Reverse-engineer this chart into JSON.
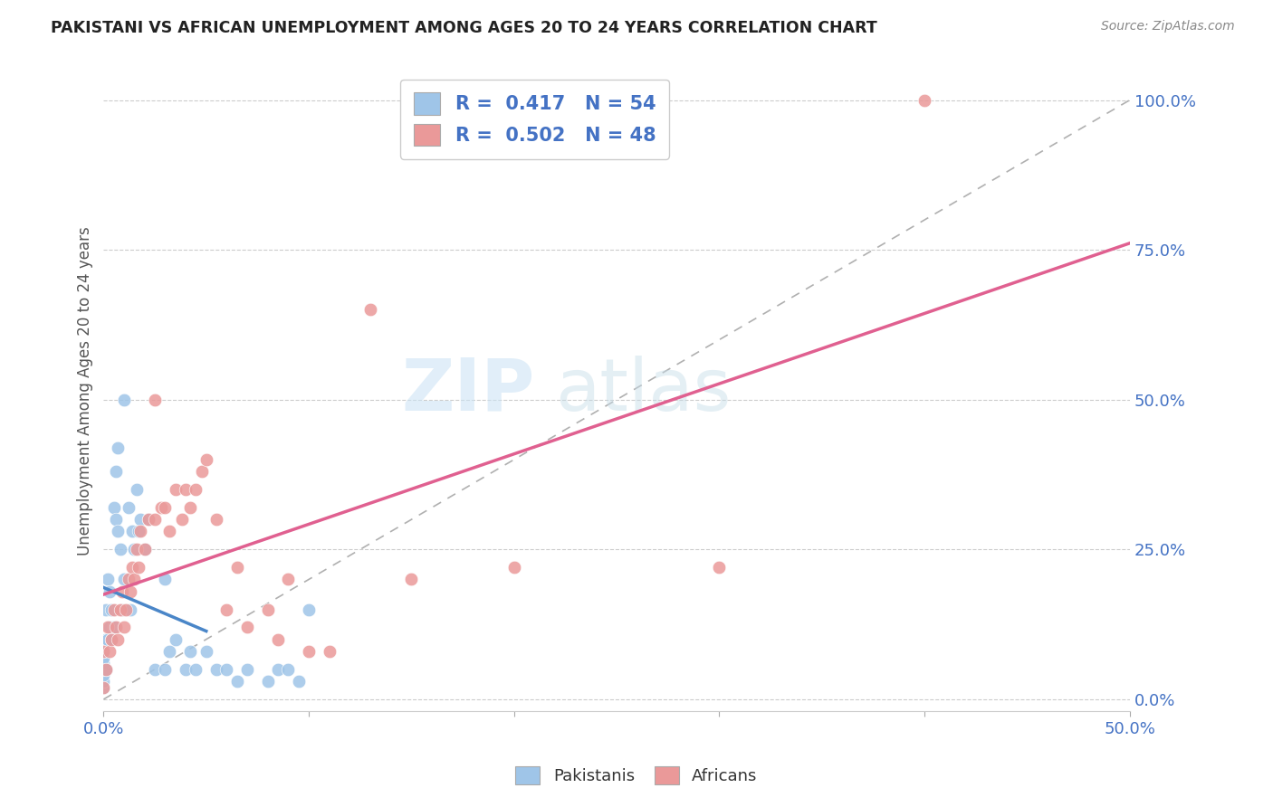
{
  "title": "PAKISTANI VS AFRICAN UNEMPLOYMENT AMONG AGES 20 TO 24 YEARS CORRELATION CHART",
  "source": "Source: ZipAtlas.com",
  "ylabel": "Unemployment Among Ages 20 to 24 years",
  "xlim": [
    0,
    0.5
  ],
  "ylim": [
    -0.02,
    1.05
  ],
  "pakistani_color": "#9fc5e8",
  "african_color": "#ea9999",
  "pakistani_R": 0.417,
  "pakistani_N": 54,
  "african_R": 0.502,
  "african_N": 48,
  "legend_labels": [
    "Pakistanis",
    "Africans"
  ],
  "watermark_zip": "ZIP",
  "watermark_atlas": "atlas",
  "pakistani_line_color": "#4a86c8",
  "african_line_color": "#e06090",
  "diag_line_color": "#b0b0b0",
  "pakistani_x": [
    0.0,
    0.0,
    0.0,
    0.0,
    0.0,
    0.0,
    0.0,
    0.0,
    0.001,
    0.001,
    0.001,
    0.002,
    0.002,
    0.003,
    0.003,
    0.004,
    0.004,
    0.005,
    0.005,
    0.006,
    0.006,
    0.007,
    0.007,
    0.008,
    0.009,
    0.01,
    0.01,
    0.012,
    0.013,
    0.014,
    0.015,
    0.016,
    0.017,
    0.018,
    0.02,
    0.022,
    0.025,
    0.03,
    0.03,
    0.032,
    0.035,
    0.04,
    0.042,
    0.045,
    0.05,
    0.055,
    0.06,
    0.065,
    0.07,
    0.08,
    0.085,
    0.09,
    0.095,
    0.1
  ],
  "pakistani_y": [
    0.02,
    0.03,
    0.04,
    0.05,
    0.06,
    0.07,
    0.08,
    0.09,
    0.05,
    0.1,
    0.15,
    0.1,
    0.2,
    0.12,
    0.18,
    0.1,
    0.15,
    0.12,
    0.32,
    0.3,
    0.38,
    0.28,
    0.42,
    0.25,
    0.15,
    0.2,
    0.5,
    0.32,
    0.15,
    0.28,
    0.25,
    0.35,
    0.28,
    0.3,
    0.25,
    0.3,
    0.05,
    0.05,
    0.2,
    0.08,
    0.1,
    0.05,
    0.08,
    0.05,
    0.08,
    0.05,
    0.05,
    0.03,
    0.05,
    0.03,
    0.05,
    0.05,
    0.03,
    0.15
  ],
  "african_x": [
    0.0,
    0.0,
    0.001,
    0.002,
    0.003,
    0.004,
    0.005,
    0.006,
    0.007,
    0.008,
    0.009,
    0.01,
    0.011,
    0.012,
    0.013,
    0.014,
    0.015,
    0.016,
    0.017,
    0.018,
    0.02,
    0.022,
    0.025,
    0.025,
    0.028,
    0.03,
    0.032,
    0.035,
    0.038,
    0.04,
    0.042,
    0.045,
    0.048,
    0.05,
    0.055,
    0.06,
    0.065,
    0.07,
    0.08,
    0.085,
    0.09,
    0.1,
    0.11,
    0.13,
    0.15,
    0.2,
    0.3,
    0.4
  ],
  "african_y": [
    0.02,
    0.08,
    0.05,
    0.12,
    0.08,
    0.1,
    0.15,
    0.12,
    0.1,
    0.15,
    0.18,
    0.12,
    0.15,
    0.2,
    0.18,
    0.22,
    0.2,
    0.25,
    0.22,
    0.28,
    0.25,
    0.3,
    0.3,
    0.5,
    0.32,
    0.32,
    0.28,
    0.35,
    0.3,
    0.35,
    0.32,
    0.35,
    0.38,
    0.4,
    0.3,
    0.15,
    0.22,
    0.12,
    0.15,
    0.1,
    0.2,
    0.08,
    0.08,
    0.65,
    0.2,
    0.22,
    0.22,
    1.0
  ]
}
